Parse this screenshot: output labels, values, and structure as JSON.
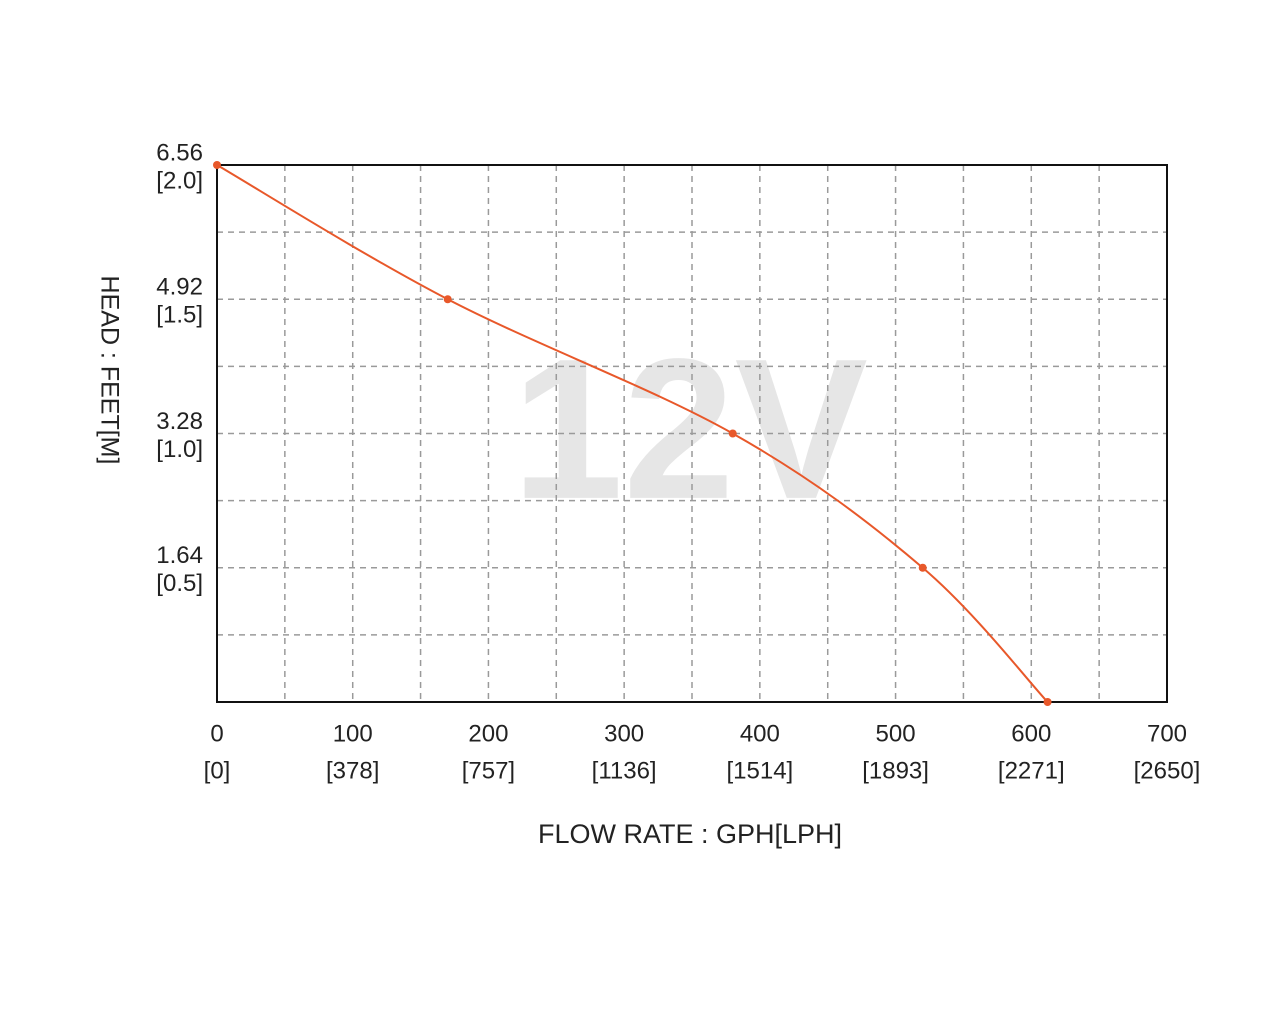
{
  "chart_data": {
    "type": "line",
    "watermark": "12V",
    "xlabel": "FLOW RATE : GPH[LPH]",
    "ylabel": "HEAD : FEET[M]",
    "xlim": [
      0,
      700
    ],
    "ylim": [
      0,
      6.56
    ],
    "xticks": [
      0,
      {
        "value": 50,
        "label": null
      },
      100,
      {
        "value": 150,
        "label": null
      },
      200,
      {
        "value": 250,
        "label": null
      },
      300,
      {
        "value": 350,
        "label": null
      },
      400,
      {
        "value": 450,
        "label": null
      },
      500,
      {
        "value": 550,
        "label": null
      },
      600,
      {
        "value": 650,
        "label": null
      },
      700
    ],
    "xtick_sublabels": [
      "[0]",
      null,
      "[378]",
      null,
      "[757]",
      null,
      "[1136]",
      null,
      "[1514]",
      null,
      "[1893]",
      null,
      "[2271]",
      null,
      "[2650]"
    ],
    "yticks": [
      {
        "value": 0,
        "label": null
      },
      {
        "value": 0.82,
        "label": null
      },
      1.64,
      {
        "value": 2.46,
        "label": null
      },
      3.28,
      {
        "value": 4.1,
        "label": null
      },
      4.92,
      {
        "value": 5.74,
        "label": null
      },
      6.56
    ],
    "ytick_sublabels": [
      null,
      null,
      "[0.5]",
      null,
      "[1.0]",
      null,
      "[1.5]",
      null,
      "[2.0]"
    ],
    "grid": true,
    "series": [
      {
        "name": "12V",
        "color": "#e8582a",
        "x": [
          0,
          170,
          380,
          520,
          612
        ],
        "values": [
          6.56,
          4.92,
          3.28,
          1.64,
          0
        ]
      }
    ]
  }
}
